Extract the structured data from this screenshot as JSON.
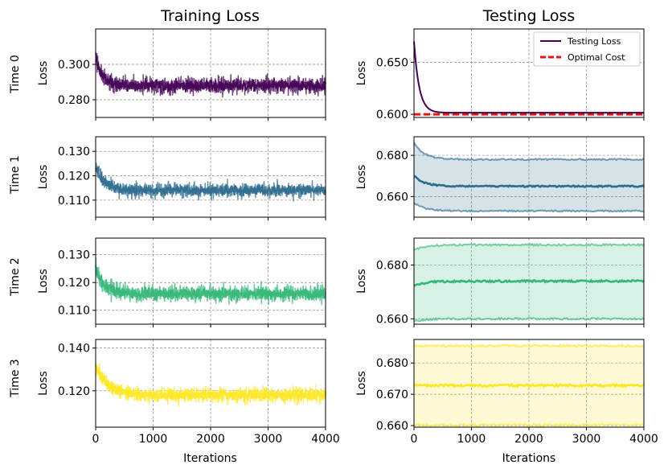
{
  "titles": {
    "left": "Training Loss",
    "right": "Testing Loss"
  },
  "xlabel": "Iterations",
  "ylabel": "Loss",
  "row_labels": [
    "Time 0",
    "Time 1",
    "Time 2",
    "Time 3"
  ],
  "legend": {
    "testing": "Testing Loss",
    "optimal": "Optimal Cost",
    "optimal_color": "#e8160c"
  },
  "colors": [
    "#440154",
    "#2e6c8e",
    "#35b779",
    "#fde725"
  ],
  "chart_data": [
    {
      "type": "line",
      "panel": "train-0",
      "title": "Training Loss",
      "ylabel": "Loss",
      "xlim": [
        0,
        4000
      ],
      "ylim": [
        0.27,
        0.32
      ],
      "xticks": [
        "0",
        "1000",
        "2000",
        "3000",
        "4000"
      ],
      "yticks": [
        0.28,
        0.3
      ],
      "ytick_labels": [
        "0.280",
        "0.300"
      ],
      "series": [
        {
          "values": {
            "mean_start": 0.305,
            "mean_end": 0.288,
            "band_start": 0.01,
            "band_end": 0.008,
            "decay": 120
          }
        }
      ]
    },
    {
      "type": "line",
      "panel": "train-1",
      "ylabel": "Loss",
      "xlim": [
        0,
        4000
      ],
      "ylim": [
        0.103,
        0.136
      ],
      "xticks": [
        "0",
        "1000",
        "2000",
        "3000",
        "4000"
      ],
      "yticks": [
        0.11,
        0.12,
        0.13
      ],
      "ytick_labels": [
        "0.110",
        "0.120",
        "0.130"
      ],
      "series": [
        {
          "values": {
            "mean_start": 0.124,
            "mean_end": 0.114,
            "band_start": 0.006,
            "band_end": 0.005,
            "decay": 150
          }
        }
      ]
    },
    {
      "type": "line",
      "panel": "train-2",
      "ylabel": "Loss",
      "xlim": [
        0,
        4000
      ],
      "ylim": [
        0.105,
        0.136
      ],
      "xticks": [
        "0",
        "1000",
        "2000",
        "3000",
        "4000"
      ],
      "yticks": [
        0.11,
        0.12,
        0.13
      ],
      "ytick_labels": [
        "0.110",
        "0.120",
        "0.130"
      ],
      "series": [
        {
          "values": {
            "mean_start": 0.125,
            "mean_end": 0.116,
            "band_start": 0.006,
            "band_end": 0.005,
            "decay": 150
          }
        }
      ]
    },
    {
      "type": "line",
      "panel": "train-3",
      "xlabel": "Iterations",
      "ylabel": "Loss",
      "xlim": [
        0,
        4000
      ],
      "ylim": [
        0.103,
        0.144
      ],
      "xticks": [
        "0",
        "1000",
        "2000",
        "3000",
        "4000"
      ],
      "yticks": [
        0.12,
        0.14
      ],
      "ytick_labels": [
        "0.120",
        "0.140"
      ],
      "series": [
        {
          "values": {
            "mean_start": 0.132,
            "mean_end": 0.118,
            "band_start": 0.007,
            "band_end": 0.006,
            "decay": 200
          }
        }
      ]
    },
    {
      "type": "line",
      "panel": "test-0",
      "title": "Testing Loss",
      "ylabel": "Loss",
      "xlim": [
        0,
        4000
      ],
      "ylim": [
        0.597,
        0.682
      ],
      "xticks": [
        "0",
        "1000",
        "2000",
        "3000",
        "4000"
      ],
      "yticks": [
        0.6,
        0.65
      ],
      "ytick_labels": [
        "0.600",
        "0.650"
      ],
      "series": [
        {
          "name": "Testing Loss",
          "values": {
            "start": 0.67,
            "end": 0.6015,
            "decay": 90
          }
        },
        {
          "name": "Optimal Cost",
          "values": {
            "y": 0.6
          }
        }
      ]
    },
    {
      "type": "line",
      "panel": "test-1",
      "ylabel": "Loss",
      "xlim": [
        0,
        4000
      ],
      "ylim": [
        0.65,
        0.689
      ],
      "xticks": [
        "0",
        "1000",
        "2000",
        "3000",
        "4000"
      ],
      "yticks": [
        0.66,
        0.68
      ],
      "ytick_labels": [
        "0.660",
        "0.680"
      ],
      "series": [
        {
          "values": {
            "upper": 0.678,
            "mean": 0.665,
            "lower": 0.653,
            "upper0": 0.686,
            "mean0": 0.67,
            "lower0": 0.657
          }
        }
      ]
    },
    {
      "type": "line",
      "panel": "test-2",
      "ylabel": "Loss",
      "xlim": [
        0,
        4000
      ],
      "ylim": [
        0.658,
        0.69
      ],
      "xticks": [
        "0",
        "1000",
        "2000",
        "3000",
        "4000"
      ],
      "yticks": [
        0.66,
        0.68
      ],
      "ytick_labels": [
        "0.660",
        "0.680"
      ],
      "series": [
        {
          "values": {
            "upper": 0.6875,
            "mean": 0.674,
            "lower": 0.66,
            "upper0": 0.6855,
            "mean0": 0.672,
            "lower0": 0.659
          }
        }
      ]
    },
    {
      "type": "line",
      "panel": "test-3",
      "xlabel": "Iterations",
      "ylabel": "Loss",
      "xlim": [
        0,
        4000
      ],
      "ylim": [
        0.6595,
        0.6875
      ],
      "xticks": [
        "0",
        "1000",
        "2000",
        "3000",
        "4000"
      ],
      "yticks": [
        0.66,
        0.67,
        0.68
      ],
      "ytick_labels": [
        "0.660",
        "0.670",
        "0.680"
      ],
      "series": [
        {
          "values": {
            "upper": 0.6855,
            "mean": 0.6728,
            "lower": 0.6602,
            "upper0": 0.6855,
            "mean0": 0.6728,
            "lower0": 0.6602
          }
        }
      ]
    }
  ]
}
